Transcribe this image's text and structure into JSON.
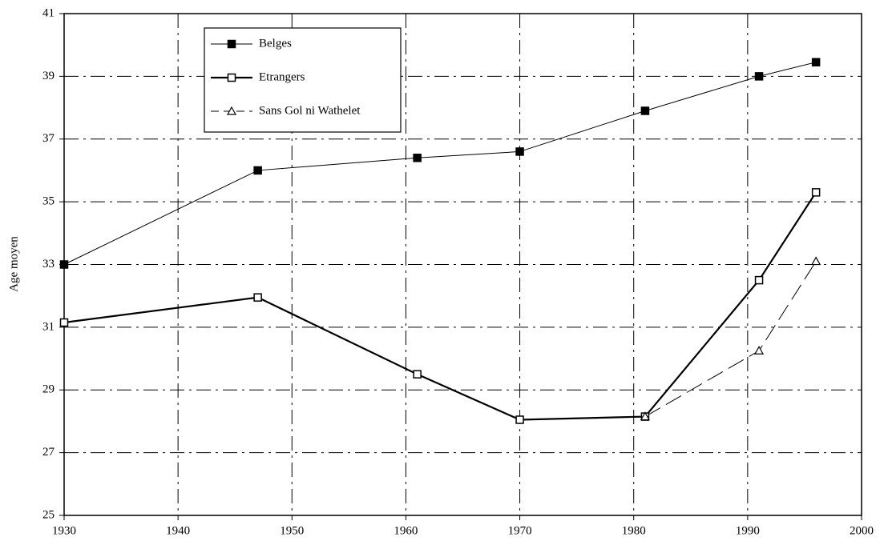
{
  "chart_data": {
    "type": "line",
    "y_label": "Age moyen",
    "x": [
      1930,
      1947,
      1961,
      1970,
      1981,
      1991,
      1996
    ],
    "series": [
      {
        "name": "Belges",
        "color": "#000000",
        "values": [
          33.0,
          36.0,
          36.4,
          36.6,
          37.9,
          39.0,
          39.45
        ]
      },
      {
        "name": "Etrangers",
        "color": "#000000",
        "values": [
          31.15,
          31.95,
          29.5,
          28.05,
          28.15,
          32.5,
          35.3
        ]
      },
      {
        "name": "Sans Gol ni Wathelet",
        "color": "#000000",
        "values": [
          null,
          null,
          null,
          null,
          28.15,
          30.25,
          33.1
        ]
      }
    ],
    "xlim": [
      1930,
      2000
    ],
    "xticks": [
      1930,
      1940,
      1950,
      1960,
      1970,
      1980,
      1990,
      2000
    ],
    "ylim": [
      25,
      41
    ],
    "yticks": [
      25,
      27,
      29,
      31,
      33,
      35,
      37,
      39,
      41
    ],
    "grid": true,
    "legend": "upper left"
  }
}
